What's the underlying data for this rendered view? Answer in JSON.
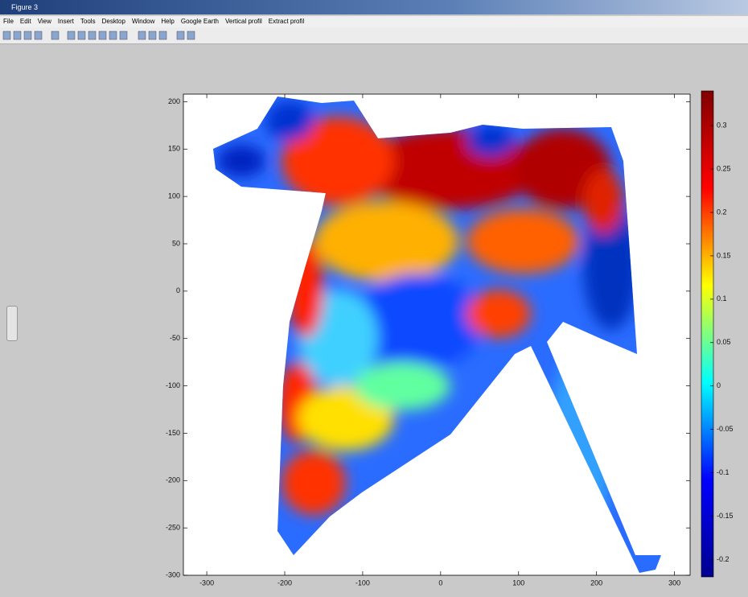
{
  "window": {
    "title": "Figure 3",
    "menu": [
      "File",
      "Edit",
      "View",
      "Insert",
      "Tools",
      "Desktop",
      "Window",
      "Help",
      "Google Earth",
      "Vertical profil",
      "Extract profil"
    ]
  },
  "chart_data": {
    "type": "heatmap",
    "xlim": [
      -330,
      320
    ],
    "xticks": [
      -300,
      -200,
      -100,
      0,
      100,
      200,
      300
    ],
    "ylim": [
      -300,
      208
    ],
    "yticks": [
      200,
      150,
      100,
      50,
      0,
      -50,
      -100,
      -150,
      -200,
      -250,
      -300
    ],
    "colorbar": {
      "colormap": "jet",
      "clim": [
        -0.22,
        0.34
      ],
      "ticks": [
        0.3,
        0.25,
        0.2,
        0.15,
        0.1,
        0.05,
        0,
        -0.05,
        -0.1,
        -0.15,
        -0.2
      ]
    }
  }
}
